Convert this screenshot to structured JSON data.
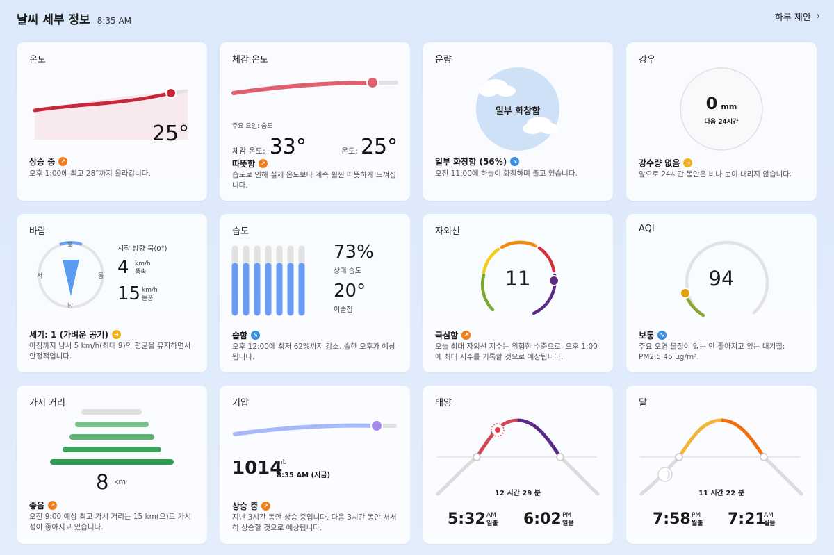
{
  "header": {
    "title": "날씨 세부 정보",
    "time": "8:35 AM",
    "day_link": "하루 제안"
  },
  "temperature": {
    "title": "온도",
    "value": "25°",
    "status": "상승 중",
    "desc": "오후 1:00에 최고 28°까지 올라갑니다."
  },
  "feels_like": {
    "title": "체감 온도",
    "factor": "주요 요인: 습도",
    "feels_label": "체감 온도:",
    "feels_value": "33°",
    "temp_label": "온도:",
    "temp_value": "25°",
    "status": "따뜻함",
    "desc": "습도로 인해 실제 온도보다 계속 훨씬 따뜻하게 느껴집니다."
  },
  "cloud": {
    "title": "운량",
    "center": "일부 화창함",
    "status": "일부 화창함 (56%)",
    "desc": "오전 11:00에 하늘이 화창하며 줄고 있습니다."
  },
  "rain": {
    "title": "강우",
    "value": "0",
    "unit": "mm",
    "sub": "다음 24시간",
    "status": "강수량 없음",
    "desc": "앞으로 24시간 동안은 비나 눈이 내리지 않습니다."
  },
  "wind": {
    "title": "바람",
    "dir_n": "북",
    "dir_s": "남",
    "dir_e": "동",
    "dir_w": "서",
    "from": "시작 방향 북(0°)",
    "speed": "4",
    "speed_unit": "km/h",
    "speed_label": "풍속",
    "gust": "15",
    "gust_unit": "km/h",
    "gust_label": "돌풍",
    "status": "세기: 1 (가벼운 공기)",
    "desc": "아침까지 남서 5 km/h(최대 9)의 평균을 유지하면서 안정적입니다.",
    "bearing_deg": 0
  },
  "humidity": {
    "title": "습도",
    "value": "73%",
    "value_label": "상대 습도",
    "dew": "20°",
    "dew_label": "이슬점",
    "status": "습함",
    "desc": "오후 12:00에 최저 62%까지 감소. 습한 오후가 예상됩니다.",
    "percent": 73
  },
  "uv": {
    "title": "자외선",
    "value": "11",
    "status": "극심함",
    "desc": "오늘 최대 자외선 지수는 위험한 수준으로, 오후 1:00에 최대 지수를 기록할 것으로 예상됩니다."
  },
  "aqi": {
    "title": "AQI",
    "value": "94",
    "status": "보통",
    "desc": "주요 오염 물질이 있는 안 좋아지고 있는 대기질: PM2.5 45 µg/m³."
  },
  "visibility": {
    "title": "가시 거리",
    "value": "8",
    "unit": "km",
    "status": "좋음",
    "desc": "오전 9:00 예상 최고 가시 거리는 15 km(으)로 가시성이 좋아지고 있습니다."
  },
  "pressure": {
    "title": "기압",
    "value": "1014",
    "unit": "mb",
    "when": "8:35 AM (지금)",
    "status": "상승 중",
    "desc": "지난 3시간 동안 상승 중입니다. 다음 3시간 동안 서서히 상승할 것으로 예상됩니다."
  },
  "sun": {
    "title": "태양",
    "duration": "12 시간 29 분",
    "rise_time": "5:32",
    "rise_ampm": "AM",
    "rise_label": "일출",
    "set_time": "6:02",
    "set_ampm": "PM",
    "set_label": "일몰"
  },
  "moon": {
    "title": "달",
    "duration": "11 시간 22 분",
    "rise_time": "7:58",
    "rise_ampm": "PM",
    "rise_label": "월출",
    "set_time": "7:21",
    "set_ampm": "AM",
    "set_label": "월몰"
  },
  "colors": {
    "temp": "#c8283a",
    "feels": "#e06070",
    "humidity": "#6a9cf5",
    "pressure": "#a389f0",
    "visibility": "#2e9a52",
    "sun_rise": "#c8283a",
    "sun_set": "#5b2a86",
    "moon": "#f08a10"
  }
}
